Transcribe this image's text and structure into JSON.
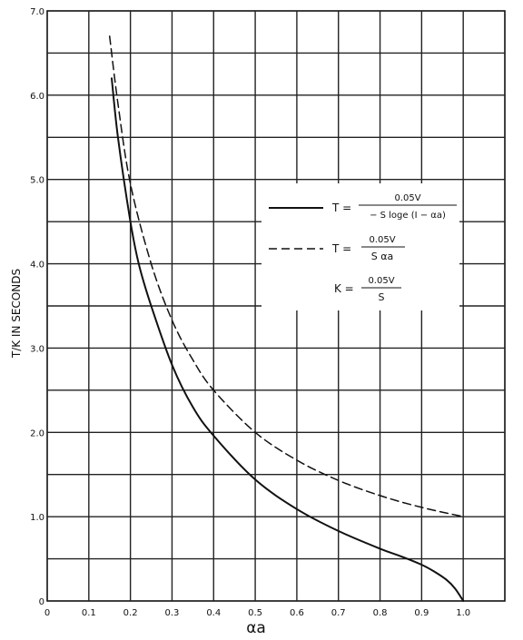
{
  "chart_data": {
    "type": "line",
    "xlabel": "αa",
    "ylabel": "T/K IN SECONDS",
    "xlim": [
      0,
      1.1
    ],
    "ylim": [
      0,
      7.0
    ],
    "grid": true,
    "legend_position": "right",
    "x_ticks": [
      "0",
      "0.1",
      "0.2",
      "0.3",
      "0.4",
      "0.5",
      "0.6",
      "0.7",
      "0.8",
      "0.9",
      "1.0"
    ],
    "y_ticks": [
      "0",
      "1.0",
      "2.0",
      "3.0",
      "4.0",
      "5.0",
      "6.0",
      "7.0"
    ],
    "series": [
      {
        "style": "solid",
        "legend_formula": {
          "lhs": "T =",
          "numerator": "0.05V",
          "denominator": "− S loge (I − αa)"
        },
        "x": [
          0.155,
          0.17,
          0.2,
          0.22,
          0.25,
          0.3,
          0.35,
          0.4,
          0.5,
          0.6,
          0.7,
          0.8,
          0.85,
          0.9,
          0.93,
          0.96,
          0.98,
          1.0
        ],
        "y": [
          6.2,
          5.5,
          4.5,
          4.0,
          3.5,
          2.8,
          2.3,
          1.96,
          1.44,
          1.09,
          0.83,
          0.62,
          0.53,
          0.43,
          0.35,
          0.25,
          0.15,
          0.0
        ]
      },
      {
        "style": "dashed",
        "legend_formula": {
          "lhs": "T =",
          "numerator": "0.05V",
          "denominator": "S αa"
        },
        "x": [
          0.15,
          0.17,
          0.2,
          0.25,
          0.3,
          0.35,
          0.4,
          0.5,
          0.6,
          0.7,
          0.8,
          0.9,
          1.0
        ],
        "y": [
          6.7,
          5.9,
          4.95,
          4.0,
          3.33,
          2.86,
          2.5,
          2.0,
          1.67,
          1.43,
          1.25,
          1.11,
          1.0
        ]
      }
    ],
    "legend_note": {
      "lhs": "K =",
      "numerator": "0.05V",
      "denominator": "S"
    }
  }
}
